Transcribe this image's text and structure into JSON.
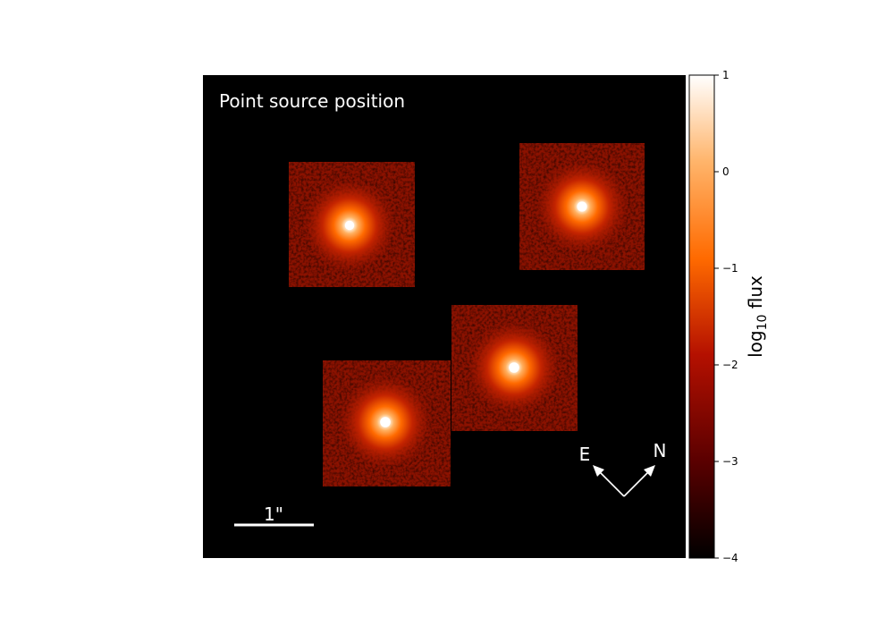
{
  "chart_data": {
    "type": "heatmap",
    "title": "Point source position",
    "scale_bar_label": "1\"",
    "compass": {
      "east_label": "E",
      "north_label": "N"
    },
    "colorbar": {
      "label": "log",
      "label_subscript": "10",
      "label_suffix": " flux",
      "range": [
        -4,
        1
      ],
      "ticks": [
        1,
        0,
        -1,
        -2,
        -3,
        -4
      ],
      "tick_labels": [
        "1",
        "0",
        "−1",
        "−2",
        "−3",
        "−4"
      ],
      "colormap": "gist_heat"
    },
    "background_value": -4,
    "cutout_background_level": -2.0,
    "point_sources": [
      {
        "name": "source-upper-left",
        "peak_log_flux": 0.6
      },
      {
        "name": "source-upper-right",
        "peak_log_flux": 0.8
      },
      {
        "name": "source-middle",
        "peak_log_flux": 0.9
      },
      {
        "name": "source-lower-left",
        "peak_log_flux": 0.9
      }
    ],
    "grid": false
  },
  "colors": {
    "background": "#000000",
    "foreground": "#ffffff",
    "colormap_stops": [
      "#000000",
      "#5a0000",
      "#b41000",
      "#ff6a00",
      "#ffb46a",
      "#ffffff"
    ]
  }
}
